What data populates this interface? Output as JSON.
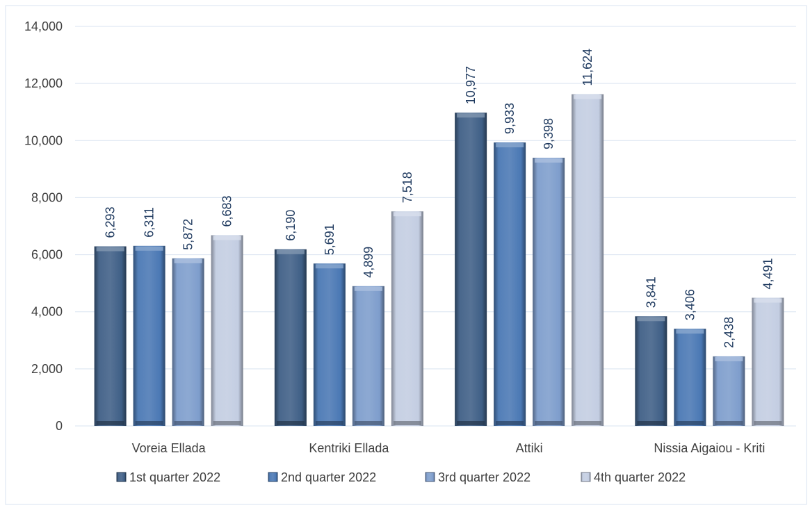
{
  "chart_data": {
    "type": "bar",
    "title": "",
    "xlabel": "",
    "ylabel": "",
    "categories": [
      "Voreia Ellada",
      "Kentriki Ellada",
      "Attiki",
      "Nissia Aigaiou - Kriti"
    ],
    "series": [
      {
        "name": "1st quarter 2022",
        "values": [
          6293,
          6190,
          10977,
          3841
        ],
        "color": "#3f5f86"
      },
      {
        "name": "2nd quarter 2022",
        "values": [
          6311,
          5691,
          9933,
          3406
        ],
        "color": "#4a78b4"
      },
      {
        "name": "3rd quarter 2022",
        "values": [
          5872,
          4899,
          9398,
          2438
        ],
        "color": "#7e9dcc"
      },
      {
        "name": "4th quarter 2022",
        "values": [
          6683,
          7518,
          11624,
          4491
        ],
        "color": "#c3cde2"
      }
    ],
    "ylim": [
      0,
      14000
    ],
    "yticks": [
      0,
      2000,
      4000,
      6000,
      8000,
      10000,
      12000,
      14000
    ],
    "ytick_labels": [
      "0",
      "2,000",
      "4,000",
      "6,000",
      "8,000",
      "10,000",
      "12,000",
      "14,000"
    ],
    "data_labels": [
      [
        "6,293",
        "6,190",
        "10,977",
        "3,841"
      ],
      [
        "6,311",
        "5,691",
        "9,933",
        "3,406"
      ],
      [
        "5,872",
        "4,899",
        "9,398",
        "2,438"
      ],
      [
        "6,683",
        "7,518",
        "11,624",
        "4,491"
      ]
    ],
    "grid": true,
    "legend_position": "bottom",
    "label_color": "#1f3a5f",
    "gridline_color": "#d9e3f0"
  }
}
